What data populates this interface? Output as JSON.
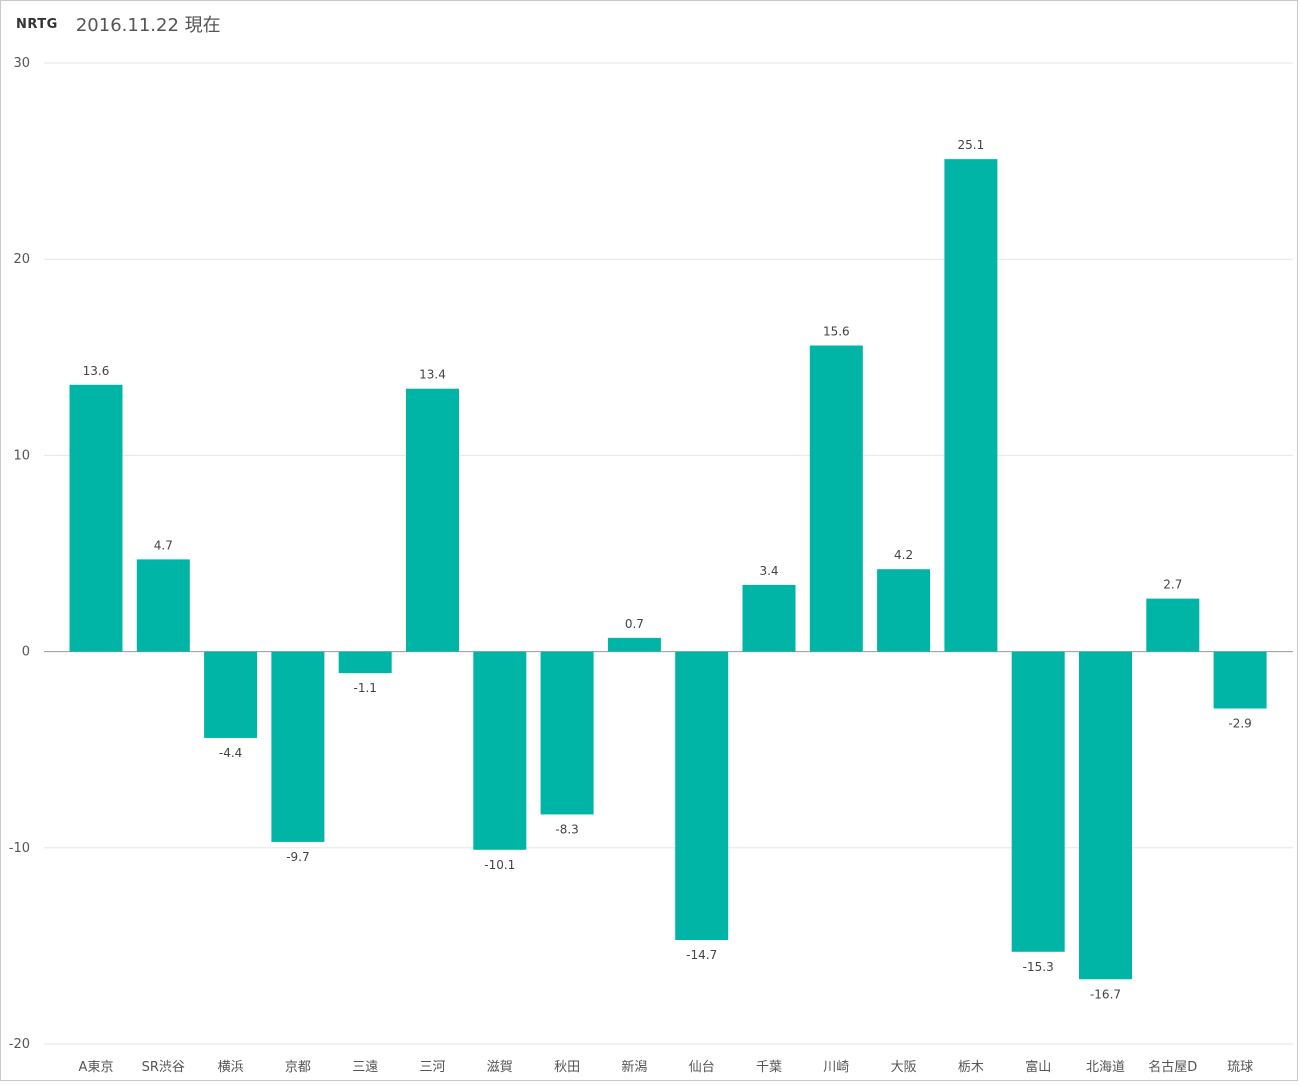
{
  "header": {
    "brand": "NRTG",
    "title": "2016.11.22 現在"
  },
  "colors": {
    "bar": "#00B5A5",
    "grid": "#e6e6e6",
    "zero_line": "#999999"
  },
  "chart_data": {
    "type": "bar",
    "title": "",
    "xlabel": "",
    "ylabel": "",
    "ylim": [
      -20,
      30
    ],
    "yticks": [
      30,
      20,
      10,
      0,
      -10,
      -20
    ],
    "grid": true,
    "legend": "none",
    "categories": [
      "A東京",
      "SR渋谷",
      "横浜",
      "京都",
      "三遠",
      "三河",
      "滋賀",
      "秋田",
      "新潟",
      "仙台",
      "千葉",
      "川崎",
      "大阪",
      "栃木",
      "富山",
      "北海道",
      "名古屋D",
      "琉球"
    ],
    "values": [
      13.6,
      4.7,
      -4.4,
      -9.7,
      -1.1,
      13.4,
      -10.1,
      -8.3,
      0.7,
      -14.7,
      3.4,
      15.6,
      4.2,
      25.1,
      -15.3,
      -16.7,
      2.7,
      -2.9
    ],
    "data_labels": [
      "13.6",
      "4.7",
      "-4.4",
      "-9.7",
      "-1.1",
      "13.4",
      "-10.1",
      "-8.3",
      "0.7",
      "-14.7",
      "3.4",
      "15.6",
      "4.2",
      "25.1",
      "-15.3",
      "-16.7",
      "2.7",
      "-2.9"
    ]
  }
}
